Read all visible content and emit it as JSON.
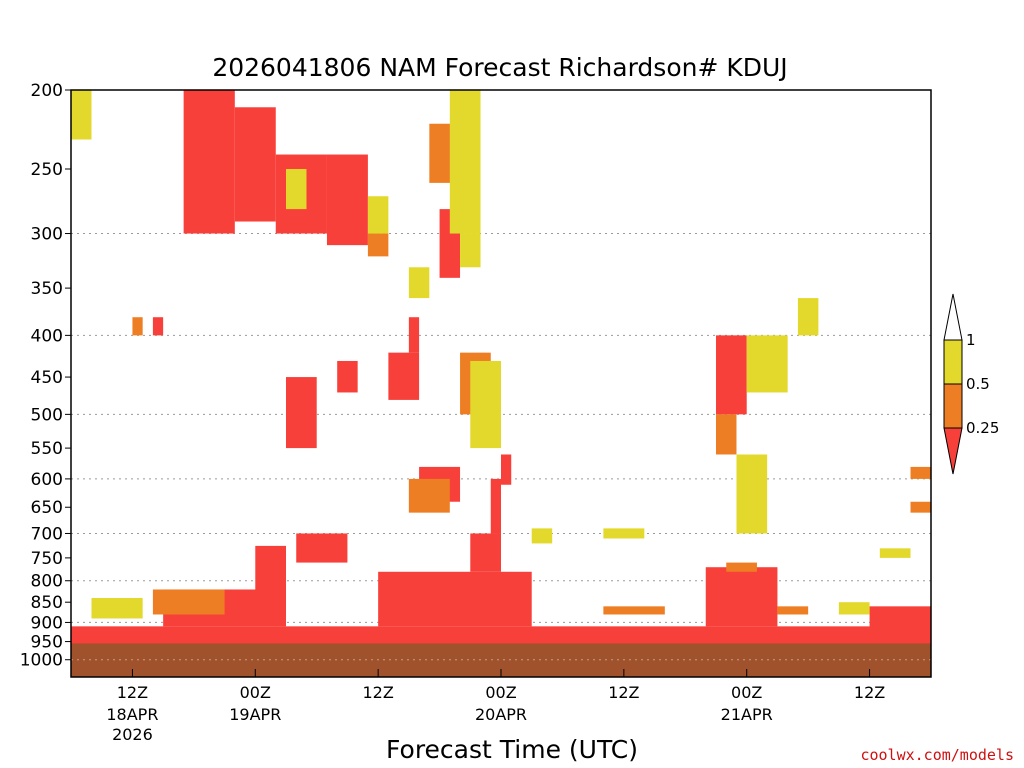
{
  "chart_data": {
    "type": "heatmap",
    "title": "2026041806 NAM Forecast Richardson# KDUJ",
    "xlabel": "Forecast Time (UTC)",
    "ylabel": "",
    "credit": "coolwx.com/models",
    "y_axis": {
      "scale": "log",
      "inverted": true,
      "range": [
        200,
        1050
      ],
      "ticks": [
        200,
        250,
        300,
        350,
        400,
        450,
        500,
        550,
        600,
        650,
        700,
        750,
        800,
        850,
        900,
        950,
        1000
      ],
      "gridlines_at": [
        300,
        400,
        500,
        600,
        700,
        800,
        900,
        1000
      ]
    },
    "x_axis": {
      "start": "2026-04-18 06Z",
      "end": "2026-04-21 18Z",
      "ticks": [
        {
          "time": "2026-04-18 12Z",
          "label": "12Z",
          "day": "18APR",
          "year": "2026"
        },
        {
          "time": "2026-04-19 00Z",
          "label": "00Z",
          "day": "19APR",
          "year": ""
        },
        {
          "time": "2026-04-19 12Z",
          "label": "12Z",
          "day": "",
          "year": ""
        },
        {
          "time": "2026-04-20 00Z",
          "label": "00Z",
          "day": "20APR",
          "year": ""
        },
        {
          "time": "2026-04-20 12Z",
          "label": "12Z",
          "day": "",
          "year": ""
        },
        {
          "time": "2026-04-21 00Z",
          "label": "00Z",
          "day": "21APR",
          "year": ""
        },
        {
          "time": "2026-04-21 12Z",
          "label": "12Z",
          "day": "",
          "year": ""
        }
      ]
    },
    "legend": {
      "placement": "right",
      "thresholds": [
        "1",
        "0.5",
        "0.25"
      ],
      "bins": [
        {
          "range": "0.5–1",
          "color": "#e3d92c"
        },
        {
          "range": "0.25–0.5",
          "color": "#ee7e24"
        },
        {
          "range": "<0.25",
          "color": "#f8403a"
        }
      ]
    },
    "colors": {
      "low": "#f8403a",
      "mid": "#ee7e24",
      "high": "#e3d92c",
      "ground": "#a0522d"
    },
    "surface_pressure_hpa": 955,
    "regions": [
      {
        "x0": "2026-04-18 06Z",
        "x1": "2026-04-21 18Z",
        "p_top": 960,
        "p_bottom": 910,
        "class": "low"
      },
      {
        "x0": "2026-04-18 15Z",
        "x1": "2026-04-19 03Z",
        "p_top": 910,
        "p_bottom": 820,
        "class": "low"
      },
      {
        "x0": "2026-04-19 00Z",
        "x1": "2026-04-19 03Z",
        "p_top": 830,
        "p_bottom": 725,
        "class": "low"
      },
      {
        "x0": "2026-04-19 12Z",
        "x1": "2026-04-20 03Z",
        "p_top": 910,
        "p_bottom": 780,
        "class": "low"
      },
      {
        "x0": "2026-04-19 21Z",
        "x1": "2026-04-20 00Z",
        "p_top": 780,
        "p_bottom": 700,
        "class": "low"
      },
      {
        "x0": "2026-04-19 23Z",
        "x1": "2026-04-20 00Z",
        "p_top": 700,
        "p_bottom": 600,
        "class": "low"
      },
      {
        "x0": "2026-04-20 20Z",
        "x1": "2026-04-21 03Z",
        "p_top": 910,
        "p_bottom": 770,
        "class": "low"
      },
      {
        "x0": "2026-04-18 17Z",
        "x1": "2026-04-18 22Z",
        "p_top": 300,
        "p_bottom": 200,
        "class": "low"
      },
      {
        "x0": "2026-04-18 22Z",
        "x1": "2026-04-19 02Z",
        "p_top": 290,
        "p_bottom": 210,
        "class": "low"
      },
      {
        "x0": "2026-04-19 02Z",
        "x1": "2026-04-19 07Z",
        "p_top": 300,
        "p_bottom": 240,
        "class": "low"
      },
      {
        "x0": "2026-04-19 07Z",
        "x1": "2026-04-19 11Z",
        "p_top": 310,
        "p_bottom": 240,
        "class": "low"
      },
      {
        "x0": "2026-04-19 03Z",
        "x1": "2026-04-19 06Z",
        "p_top": 550,
        "p_bottom": 450,
        "class": "low"
      },
      {
        "x0": "2026-04-19 08Z",
        "x1": "2026-04-19 10Z",
        "p_top": 470,
        "p_bottom": 430,
        "class": "low"
      },
      {
        "x0": "2026-04-20 21Z",
        "x1": "2026-04-21 00Z",
        "p_top": 400,
        "p_bottom": 500,
        "class": "low"
      },
      {
        "x0": "2026-04-21 12Z",
        "x1": "2026-04-21 18Z",
        "p_top": 920,
        "p_bottom": 860,
        "class": "low"
      },
      {
        "x0": "2026-04-18 14Z",
        "x1": "2026-04-18 15Z",
        "p_top": 380,
        "p_bottom": 400,
        "class": "low"
      },
      {
        "x0": "2026-04-19 15Z",
        "x1": "2026-04-19 16Z",
        "p_top": 380,
        "p_bottom": 420,
        "class": "low"
      },
      {
        "x0": "2026-04-19 13Z",
        "x1": "2026-04-19 16Z",
        "p_top": 420,
        "p_bottom": 480,
        "class": "low"
      },
      {
        "x0": "2026-04-19 18Z",
        "x1": "2026-04-19 20Z",
        "p_top": 280,
        "p_bottom": 340,
        "class": "low"
      },
      {
        "x0": "2026-04-19 16Z",
        "x1": "2026-04-19 20Z",
        "p_top": 580,
        "p_bottom": 640,
        "class": "low"
      },
      {
        "x0": "2026-04-20 00Z",
        "x1": "2026-04-20 01Z",
        "p_top": 560,
        "p_bottom": 610,
        "class": "low"
      },
      {
        "x0": "2026-04-19 04Z",
        "x1": "2026-04-19 09Z",
        "p_top": 700,
        "p_bottom": 760,
        "class": "low"
      },
      {
        "x0": "2026-04-18 12Z",
        "x1": "2026-04-18 13Z",
        "p_top": 380,
        "p_bottom": 400,
        "class": "mid"
      },
      {
        "x0": "2026-04-18 14Z",
        "x1": "2026-04-18 21Z",
        "p_top": 880,
        "p_bottom": 820,
        "class": "mid"
      },
      {
        "x0": "2026-04-19 17Z",
        "x1": "2026-04-19 20Z",
        "p_top": 220,
        "p_bottom": 260,
        "class": "mid"
      },
      {
        "x0": "2026-04-19 20Z",
        "x1": "2026-04-19 23Z",
        "p_top": 420,
        "p_bottom": 500,
        "class": "mid"
      },
      {
        "x0": "2026-04-19 11Z",
        "x1": "2026-04-19 13Z",
        "p_top": 300,
        "p_bottom": 320,
        "class": "mid"
      },
      {
        "x0": "2026-04-19 15Z",
        "x1": "2026-04-19 19Z",
        "p_top": 600,
        "p_bottom": 660,
        "class": "mid"
      },
      {
        "x0": "2026-04-20 10Z",
        "x1": "2026-04-20 16Z",
        "p_top": 880,
        "p_bottom": 860,
        "class": "mid"
      },
      {
        "x0": "2026-04-20 21Z",
        "x1": "2026-04-20 23Z",
        "p_top": 500,
        "p_bottom": 560,
        "class": "mid"
      },
      {
        "x0": "2026-04-20 22Z",
        "x1": "2026-04-21 01Z",
        "p_top": 780,
        "p_bottom": 760,
        "class": "mid"
      },
      {
        "x0": "2026-04-21 03Z",
        "x1": "2026-04-21 06Z",
        "p_top": 880,
        "p_bottom": 860,
        "class": "mid"
      },
      {
        "x0": "2026-04-21 16Z",
        "x1": "2026-04-21 18Z",
        "p_top": 640,
        "p_bottom": 660,
        "class": "mid"
      },
      {
        "x0": "2026-04-21 16Z",
        "x1": "2026-04-21 18Z",
        "p_top": 580,
        "p_bottom": 600,
        "class": "mid"
      },
      {
        "x0": "2026-04-19 19Z",
        "x1": "2026-04-19 22Z",
        "p_top": 200,
        "p_bottom": 300,
        "class": "high"
      },
      {
        "x0": "2026-04-19 20Z",
        "x1": "2026-04-19 22Z",
        "p_top": 300,
        "p_bottom": 330,
        "class": "high"
      },
      {
        "x0": "2026-04-19 21Z",
        "x1": "2026-04-20 00Z",
        "p_top": 430,
        "p_bottom": 550,
        "class": "high"
      },
      {
        "x0": "2026-04-20 23Z",
        "x1": "2026-04-21 02Z",
        "p_top": 560,
        "p_bottom": 700,
        "class": "high"
      },
      {
        "x0": "2026-04-18 06Z",
        "x1": "2026-04-18 08Z",
        "p_top": 200,
        "p_bottom": 230,
        "class": "high"
      },
      {
        "x0": "2026-04-21 00Z",
        "x1": "2026-04-21 04Z",
        "p_top": 400,
        "p_bottom": 470,
        "class": "high"
      },
      {
        "x0": "2026-04-21 05Z",
        "x1": "2026-04-21 07Z",
        "p_top": 360,
        "p_bottom": 400,
        "class": "high"
      },
      {
        "x0": "2026-04-20 10Z",
        "x1": "2026-04-20 14Z",
        "p_top": 710,
        "p_bottom": 690,
        "class": "high"
      },
      {
        "x0": "2026-04-21 13Z",
        "x1": "2026-04-21 16Z",
        "p_top": 750,
        "p_bottom": 730,
        "class": "high"
      },
      {
        "x0": "2026-04-18 08Z",
        "x1": "2026-04-18 13Z",
        "p_top": 890,
        "p_bottom": 840,
        "class": "high"
      },
      {
        "x0": "2026-04-21 09Z",
        "x1": "2026-04-21 12Z",
        "p_top": 880,
        "p_bottom": 850,
        "class": "high"
      },
      {
        "x0": "2026-04-19 03Z",
        "x1": "2026-04-19 05Z",
        "p_top": 250,
        "p_bottom": 280,
        "class": "high"
      },
      {
        "x0": "2026-04-19 11Z",
        "x1": "2026-04-19 13Z",
        "p_top": 270,
        "p_bottom": 300,
        "class": "high"
      },
      {
        "x0": "2026-04-19 15Z",
        "x1": "2026-04-19 17Z",
        "p_top": 330,
        "p_bottom": 360,
        "class": "high"
      },
      {
        "x0": "2026-04-20 03Z",
        "x1": "2026-04-20 05Z",
        "p_top": 720,
        "p_bottom": 690,
        "class": "high"
      }
    ]
  }
}
